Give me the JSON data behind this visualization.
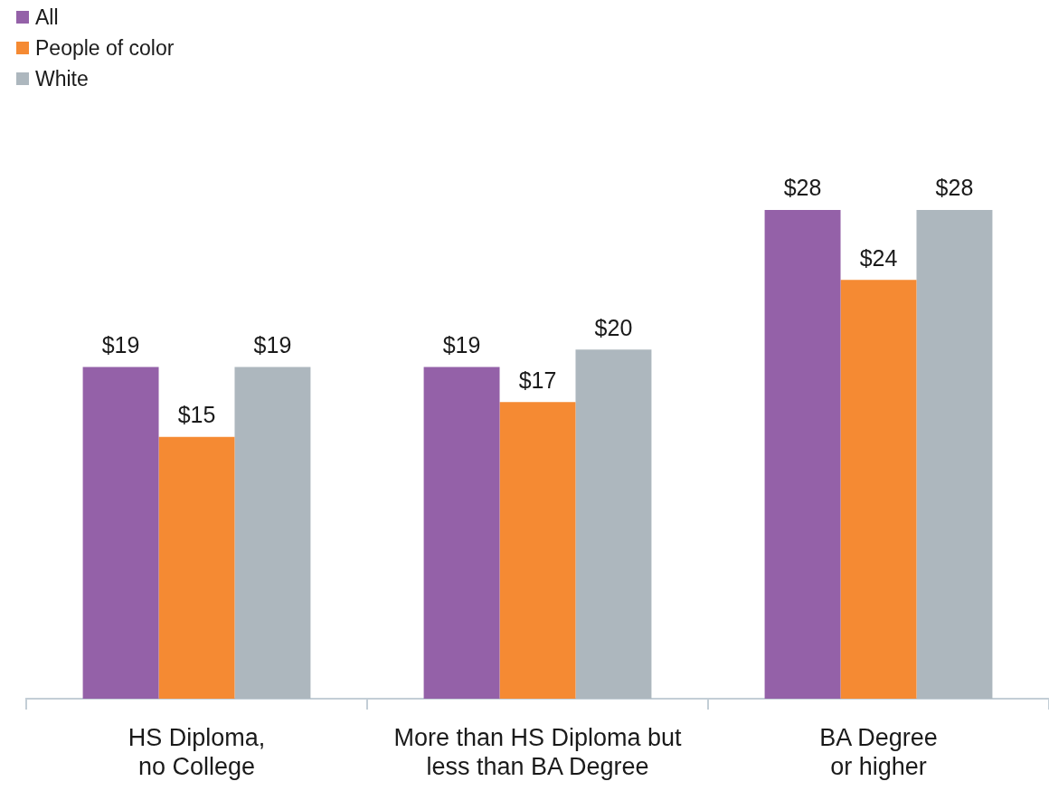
{
  "chart_data": {
    "type": "bar",
    "categories": [
      "HS Diploma,\nno College",
      "More than HS Diploma but\nless than BA Degree",
      "BA Degree\nor higher"
    ],
    "series": [
      {
        "name": "All",
        "color": "#9461a8",
        "values": [
          19,
          19,
          28
        ],
        "value_labels": [
          "$19",
          "$19",
          "$28"
        ]
      },
      {
        "name": "People of color",
        "color": "#f58a33",
        "values": [
          15,
          17,
          24
        ],
        "value_labels": [
          "$15",
          "$17",
          "$24"
        ]
      },
      {
        "name": "White",
        "color": "#adb7be",
        "values": [
          19,
          20,
          28
        ],
        "value_labels": [
          "$19",
          "$20",
          "$28"
        ]
      }
    ],
    "legend": "top left",
    "tick_labels": "x"
  }
}
